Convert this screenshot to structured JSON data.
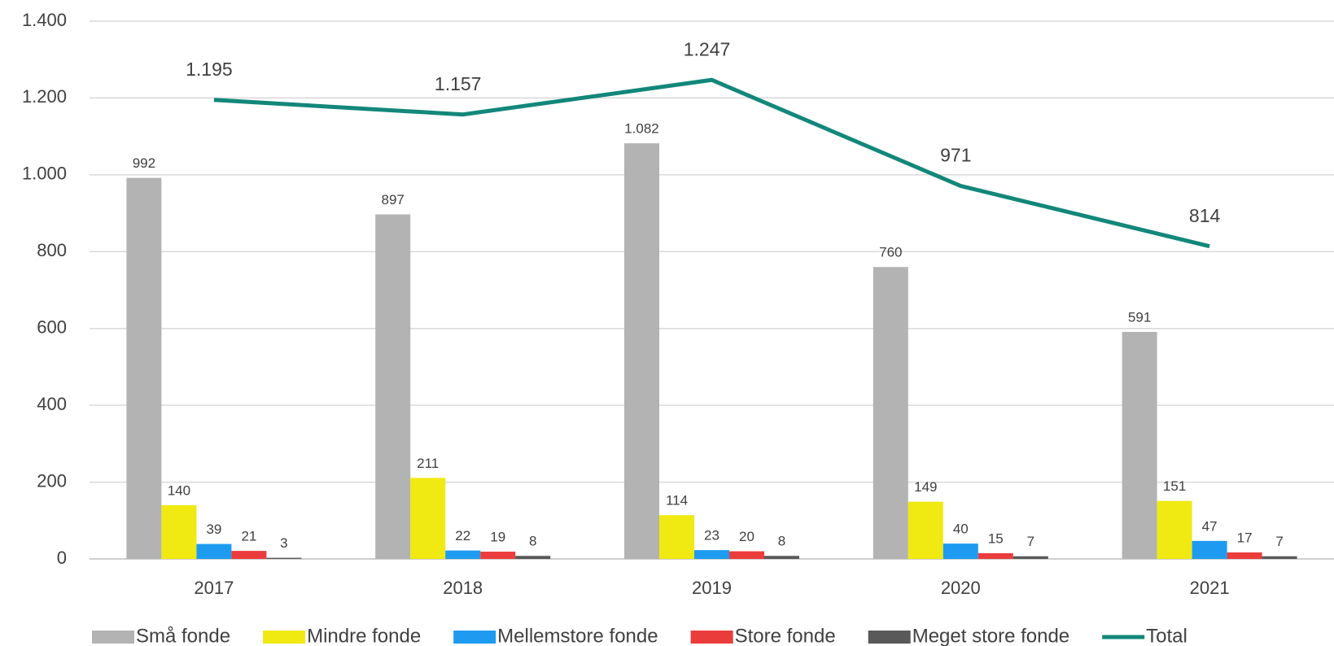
{
  "chart_data": {
    "type": "bar",
    "categories": [
      "2017",
      "2018",
      "2019",
      "2020",
      "2021"
    ],
    "series": [
      {
        "name": "Små fonde",
        "color": "#b3b3b3",
        "values": [
          992,
          897,
          1082,
          760,
          591
        ],
        "value_labels": [
          "992",
          "897",
          "1.082",
          "760",
          "591"
        ]
      },
      {
        "name": "Mindre fonde",
        "color": "#f0e912",
        "values": [
          140,
          211,
          114,
          149,
          151
        ],
        "value_labels": [
          "140",
          "211",
          "114",
          "149",
          "151"
        ]
      },
      {
        "name": "Mellemstore fonde",
        "color": "#1e9bf0",
        "values": [
          39,
          22,
          23,
          40,
          47
        ],
        "value_labels": [
          "39",
          "22",
          "23",
          "40",
          "47"
        ]
      },
      {
        "name": "Store fonde",
        "color": "#eb3c3c",
        "values": [
          21,
          19,
          20,
          15,
          17
        ],
        "value_labels": [
          "21",
          "19",
          "20",
          "15",
          "17"
        ]
      },
      {
        "name": "Meget store fonde",
        "color": "#595959",
        "values": [
          3,
          8,
          8,
          7,
          7
        ],
        "value_labels": [
          "3",
          "8",
          "8",
          "7",
          "7"
        ]
      },
      {
        "name": "Total",
        "color": "#12877a",
        "type": "line",
        "values": [
          1195,
          1157,
          1247,
          971,
          814
        ],
        "value_labels": [
          "1.195",
          "1.157",
          "1.247",
          "971",
          "814"
        ]
      }
    ],
    "ylim": [
      0,
      1400
    ],
    "yticks": [
      0,
      200,
      400,
      600,
      800,
      {
        "value": 1000,
        "label": "1.000"
      },
      {
        "value": 1200,
        "label": "1.200"
      },
      {
        "value": 1400,
        "label": "1.400"
      }
    ],
    "grid": true,
    "legend": "bottom"
  }
}
